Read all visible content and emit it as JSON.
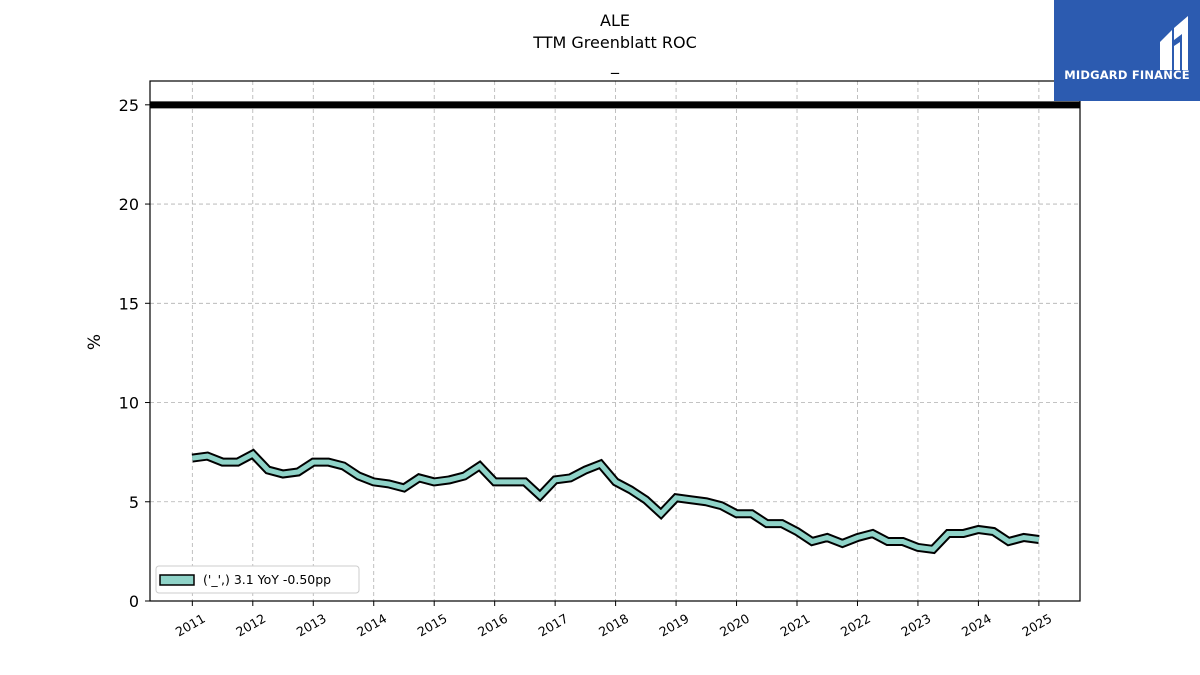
{
  "logo": {
    "text": "MIDGARD FINANCE",
    "background": "#2c5bb0"
  },
  "chart_data": {
    "type": "line",
    "title_lines": [
      "ALE",
      "TTM Greenblatt ROC",
      "_"
    ],
    "ylabel": "%",
    "xlabel": "",
    "ylim": [
      0,
      26.2
    ],
    "yticks": [
      0,
      5,
      10,
      15,
      20,
      25
    ],
    "xlim": [
      2010.3,
      2025.68
    ],
    "xticks": [
      2011,
      2012,
      2013,
      2014,
      2015,
      2016,
      2017,
      2018,
      2019,
      2020,
      2021,
      2022,
      2023,
      2024,
      2025
    ],
    "xtick_labels": [
      "2011",
      "2012",
      "2013",
      "2014",
      "2015",
      "2016",
      "2017",
      "2018",
      "2019",
      "2020",
      "2021",
      "2022",
      "2023",
      "2024",
      "2025"
    ],
    "grid": true,
    "legend_position": "lower-left",
    "reference_line": {
      "y": 25,
      "color": "#000000"
    },
    "series": [
      {
        "name": "('_',) 3.1 YoY -0.50pp",
        "color": "#8fd3c8",
        "x": [
          2011.0,
          2011.25,
          2011.5,
          2011.75,
          2012.0,
          2012.25,
          2012.5,
          2012.75,
          2013.0,
          2013.25,
          2013.5,
          2013.75,
          2014.0,
          2014.25,
          2014.5,
          2014.75,
          2015.0,
          2015.25,
          2015.5,
          2015.75,
          2016.0,
          2016.25,
          2016.5,
          2016.75,
          2017.0,
          2017.25,
          2017.5,
          2017.75,
          2018.0,
          2018.25,
          2018.5,
          2018.75,
          2019.0,
          2019.25,
          2019.5,
          2019.75,
          2020.0,
          2020.25,
          2020.5,
          2020.75,
          2021.0,
          2021.25,
          2021.5,
          2021.75,
          2022.0,
          2022.25,
          2022.5,
          2022.75,
          2023.0,
          2023.25,
          2023.5,
          2023.75,
          2024.0,
          2024.25,
          2024.5,
          2024.75,
          2025.0
        ],
        "values": [
          7.2,
          7.3,
          7.0,
          7.0,
          7.4,
          6.6,
          6.4,
          6.5,
          7.0,
          7.0,
          6.8,
          6.3,
          6.0,
          5.9,
          5.7,
          6.2,
          6.0,
          6.1,
          6.3,
          6.8,
          6.0,
          6.0,
          6.0,
          5.3,
          6.1,
          6.2,
          6.6,
          6.9,
          6.0,
          5.6,
          5.1,
          4.4,
          5.2,
          5.1,
          5.0,
          4.8,
          4.4,
          4.4,
          3.9,
          3.9,
          3.5,
          3.0,
          3.2,
          2.9,
          3.2,
          3.4,
          3.0,
          3.0,
          2.7,
          2.6,
          3.4,
          3.4,
          3.6,
          3.5,
          3.0,
          3.2,
          3.1
        ]
      }
    ]
  }
}
